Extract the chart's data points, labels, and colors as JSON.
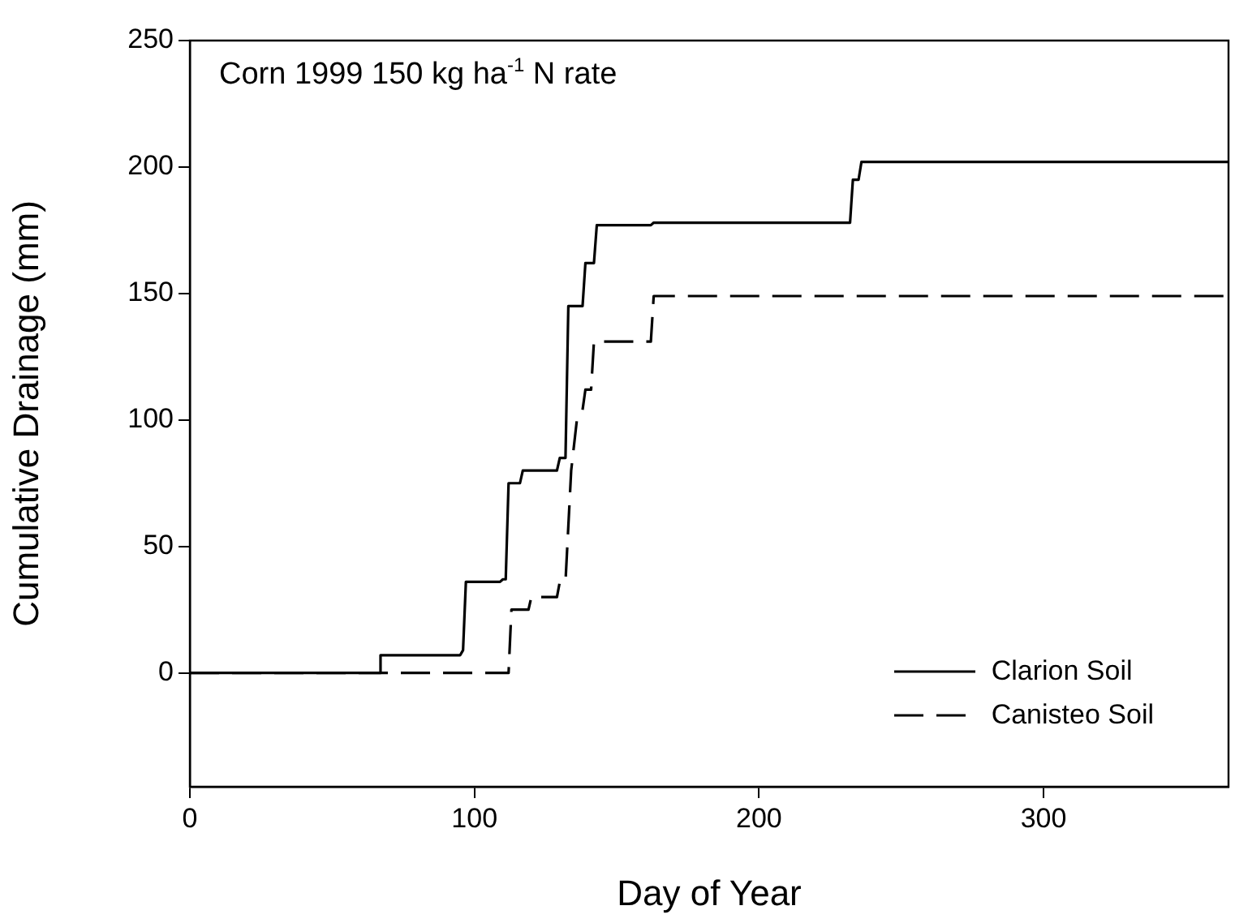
{
  "chart_data": {
    "type": "line",
    "title": "Corn 1999 150 kg ha$^{-1}$ N rate",
    "xlabel": "Day of Year",
    "ylabel": "Cumulative Drainage (mm)",
    "xlim": [
      0,
      365
    ],
    "xticks": [
      0,
      100,
      200,
      300
    ],
    "ylim": [
      -45,
      250
    ],
    "yticks": [
      0,
      50,
      100,
      150,
      200,
      250
    ],
    "legend": "bottom right",
    "marker": "none",
    "series": [
      {
        "name": "Clarion Soil",
        "color": "#000000",
        "line_style": "solid",
        "x": [
          0,
          67,
          67,
          95,
          96,
          97,
          109,
          110,
          111,
          112,
          116,
          117,
          129,
          130,
          132,
          133,
          138,
          139,
          142,
          143,
          162,
          163,
          232,
          233,
          235,
          236,
          365
        ],
        "values": [
          0,
          0,
          7,
          7,
          9,
          36,
          36,
          37,
          37,
          75,
          75,
          80,
          80,
          85,
          85,
          145,
          145,
          162,
          162,
          177,
          177,
          178,
          178,
          195,
          195,
          202,
          202
        ]
      },
      {
        "name": "Canisteo Soil",
        "color": "#000000",
        "line_style": "dashed",
        "x": [
          0,
          112,
          113,
          119,
          120,
          129,
          130,
          132,
          134,
          136,
          138,
          139,
          141,
          142,
          162,
          163,
          365
        ],
        "values": [
          0,
          0,
          25,
          25,
          30,
          30,
          36,
          36,
          80,
          100,
          104,
          112,
          112,
          131,
          131,
          149,
          149
        ]
      }
    ]
  }
}
